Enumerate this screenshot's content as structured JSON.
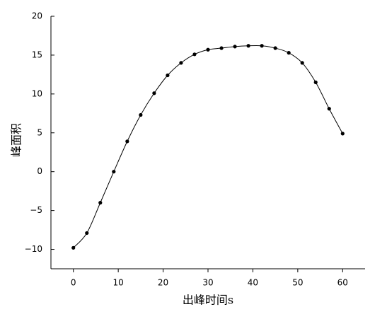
{
  "chart_data": {
    "type": "line",
    "x_label": "出峰时间s",
    "y_label": "峰面积",
    "x": [
      0,
      3,
      6,
      9,
      12,
      15,
      18,
      21,
      24,
      27,
      30,
      33,
      36,
      39,
      42,
      45,
      48,
      51,
      54,
      57,
      60
    ],
    "series": [
      {
        "color": "#000000",
        "values": [
          -9.8,
          -7.9,
          -4.0,
          0.0,
          3.9,
          7.3,
          10.1,
          12.4,
          14.0,
          15.1,
          15.7,
          15.9,
          16.1,
          16.2,
          16.2,
          15.9,
          15.3,
          14.0,
          11.5,
          8.1,
          4.9
        ]
      }
    ],
    "xlim": [
      -5,
      65
    ],
    "xticks": [
      0,
      10,
      20,
      30,
      40,
      50,
      60
    ],
    "ylim": [
      -12.5,
      20
    ],
    "yticks": [
      {
        "value": -10,
        "label": "−10"
      },
      {
        "value": -5,
        "label": "−5"
      },
      0,
      5,
      10,
      15,
      20
    ],
    "grid": false
  }
}
